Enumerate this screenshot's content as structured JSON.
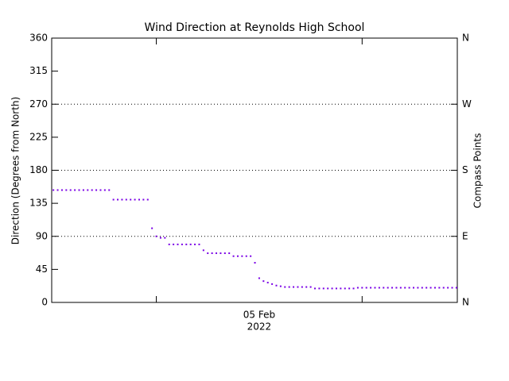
{
  "chart_data": {
    "type": "scatter",
    "title": "Wind Direction at Reynolds High School",
    "ylabel": "Direction (Degrees from North)",
    "y2label": "Compass Points",
    "x": [
      -12,
      -11.5,
      -11,
      -10.5,
      -10,
      -9.5,
      -9,
      -8.5,
      -8,
      -7.5,
      -7,
      -6.5,
      -6,
      -5.5,
      -5,
      -4.5,
      -4,
      -3.5,
      -3,
      -2.5,
      -2,
      -1.5,
      -1,
      -0.5,
      0,
      0.5,
      1,
      1.5,
      2,
      2.5,
      3,
      3.5,
      4,
      4.5,
      5,
      5.5,
      6,
      6.5,
      7,
      7.5,
      8,
      8.5,
      9,
      9.5,
      10,
      10.5,
      11,
      11.5,
      12,
      12.5,
      13,
      13.5,
      14,
      14.5,
      15,
      15.5,
      16,
      16.5,
      17,
      17.5,
      18,
      18.5,
      19,
      19.5,
      20,
      20.5,
      21,
      21.5,
      22,
      22.5,
      23,
      23.5,
      24,
      24.5,
      25,
      25.5,
      26,
      26.5,
      27,
      27.5,
      28,
      28.5,
      29,
      29.5,
      30,
      30.5,
      31,
      31.5,
      32,
      32.5,
      33,
      33.5,
      34,
      34.5,
      35
    ],
    "series": [
      {
        "color": "#7a00e6",
        "values": [
          153,
          153,
          153,
          153,
          153,
          153,
          153,
          153,
          153,
          153,
          153,
          153,
          153,
          153,
          140,
          140,
          140,
          140,
          140,
          140,
          140,
          140,
          140,
          101,
          90,
          88,
          88,
          79,
          79,
          79,
          79,
          79,
          79,
          79,
          79,
          71,
          67,
          67,
          67,
          67,
          67,
          67,
          63,
          63,
          63,
          63,
          63,
          54,
          33,
          29,
          27,
          25,
          23,
          22,
          21,
          21,
          21,
          21,
          21,
          21,
          21,
          19,
          19,
          19,
          19,
          19,
          19,
          19,
          19,
          19,
          19,
          20,
          20,
          20,
          20,
          20,
          20,
          20,
          20,
          20,
          20,
          20,
          20,
          20,
          20,
          20,
          20,
          20,
          20,
          20,
          20,
          20,
          20,
          20,
          20
        ]
      }
    ],
    "xlim": [
      -12.2,
      35.1
    ],
    "xticks": [
      {
        "value": 12,
        "label": "05 Feb"
      }
    ],
    "xtick_sublabel": "2022",
    "xminorticks": [
      0,
      24
    ],
    "ylim": [
      0,
      360
    ],
    "yticks": [
      0,
      45,
      90,
      135,
      180,
      225,
      270,
      315,
      360
    ],
    "y2lim": [
      0,
      360
    ],
    "y2ticks": [
      {
        "value": 0,
        "label": "N"
      },
      {
        "value": 90,
        "label": "E"
      },
      {
        "value": 180,
        "label": "S"
      },
      {
        "value": 270,
        "label": "W"
      },
      {
        "value": 360,
        "label": "N"
      }
    ],
    "grid": "dotted"
  }
}
